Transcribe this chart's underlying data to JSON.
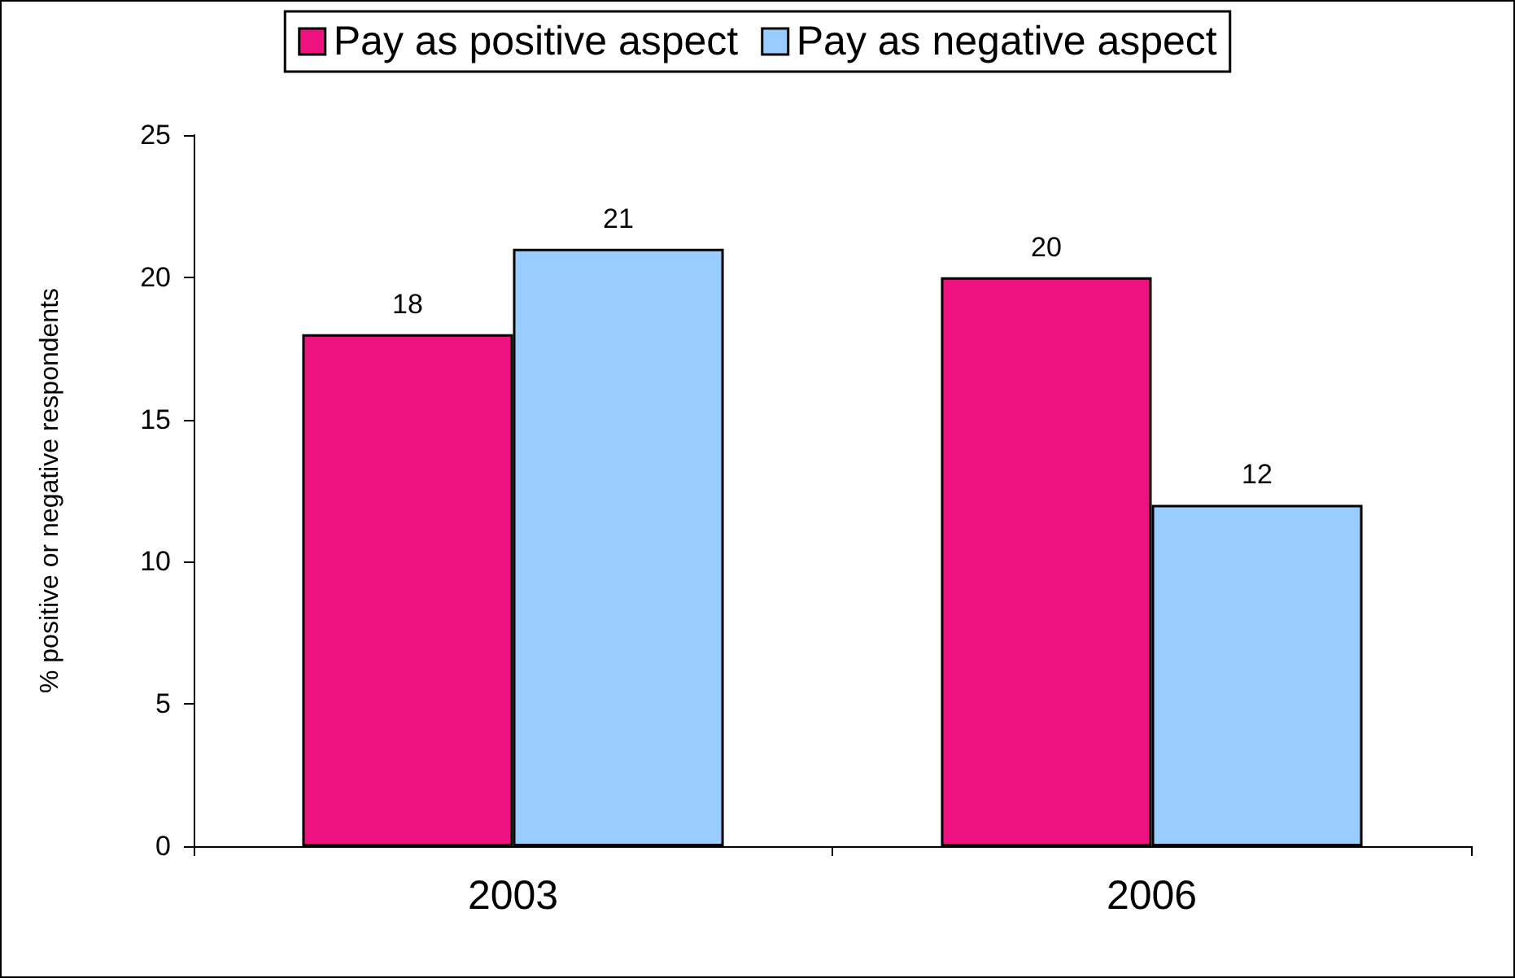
{
  "chart_data": {
    "type": "bar",
    "ylabel": "% positive or negative respondents",
    "categories": [
      "2003",
      "2006"
    ],
    "series": [
      {
        "name": "Pay as positive aspect",
        "color": "#ee1180",
        "values": [
          18,
          20
        ]
      },
      {
        "name": "Pay as negative aspect",
        "color": "#99ccff",
        "values": [
          21,
          12
        ]
      }
    ],
    "ylim": [
      0,
      25
    ],
    "yticks": [
      0,
      5,
      10,
      15,
      20,
      25
    ],
    "grid": false,
    "legend": "top",
    "data_labels": true
  }
}
